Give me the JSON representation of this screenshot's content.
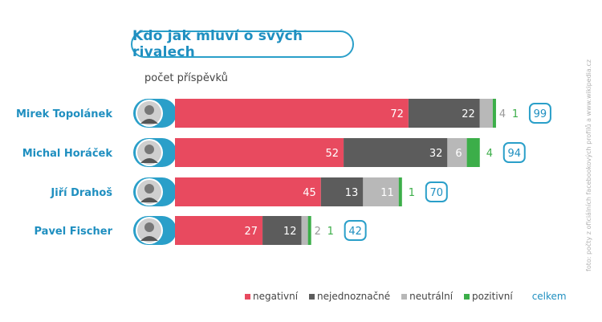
{
  "title": "Kdo jak mluví o svých rivalech",
  "subtitle": "počet příspěvků",
  "side_note": "foto: počty z oficiálních facebookových profilů a www.wikipedia.cz",
  "legend_total_label": "celkem",
  "colors": {
    "negativni": "#e84a5f",
    "nejednoznacne": "#5c5c5c",
    "neutralni": "#b8b8b8",
    "pozitivni": "#3cae49",
    "accent": "#2a9fc9"
  },
  "chart_data": {
    "type": "bar",
    "orientation": "horizontal",
    "stacked": true,
    "categories": [
      "Mirek Topolánek",
      "Michal Horáček",
      "Jiří Drahoš",
      "Pavel Fischer"
    ],
    "series": [
      {
        "name": "negativní",
        "values": [
          72,
          52,
          45,
          27
        ]
      },
      {
        "name": "nejednoznačné",
        "values": [
          22,
          32,
          13,
          12
        ]
      },
      {
        "name": "neutrální",
        "values": [
          4,
          6,
          11,
          2
        ]
      },
      {
        "name": "pozitivní",
        "values": [
          1,
          4,
          1,
          1
        ]
      }
    ],
    "totals": [
      99,
      94,
      70,
      42
    ],
    "legend_position": "bottom-right",
    "grid": false
  }
}
